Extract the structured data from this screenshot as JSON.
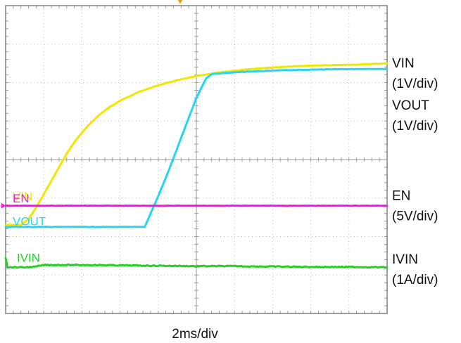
{
  "chart_data": {
    "type": "line",
    "title": "",
    "xlabel": "2ms/div",
    "ylabel": "",
    "grid": true,
    "xlim": [
      0,
      20
    ],
    "ylim": [
      -4,
      4
    ],
    "series": [
      {
        "name": "VIN",
        "color": "#f2e600",
        "x": [
          0,
          0.8,
          1.2,
          1.6,
          2.0,
          2.4,
          2.8,
          3.2,
          3.6,
          4.0,
          4.5,
          5.0,
          5.5,
          6.0,
          7.0,
          8.0,
          9.0,
          10.0,
          11.0,
          12.0,
          13.0,
          14.0,
          15.0,
          16.0,
          17.0,
          18.0,
          19.0,
          20.0
        ],
        "y": [
          -1.7,
          -1.7,
          -1.55,
          -1.25,
          -0.9,
          -0.55,
          -0.2,
          0.15,
          0.45,
          0.7,
          0.97,
          1.2,
          1.38,
          1.53,
          1.76,
          1.93,
          2.06,
          2.17,
          2.25,
          2.31,
          2.36,
          2.39,
          2.42,
          2.44,
          2.45,
          2.46,
          2.48,
          2.5
        ]
      },
      {
        "name": "VOUT",
        "color": "#29d3f5",
        "x": [
          0,
          7.3,
          7.6,
          8.0,
          8.5,
          9.0,
          9.5,
          10.0,
          10.5,
          10.8,
          11.5,
          12.5,
          13.5,
          14.5,
          15.5,
          16.5,
          17.5,
          18.5,
          20.0
        ],
        "y": [
          -1.75,
          -1.75,
          -1.4,
          -0.95,
          -0.35,
          0.3,
          0.95,
          1.6,
          2.1,
          2.22,
          2.25,
          2.28,
          2.3,
          2.32,
          2.33,
          2.34,
          2.35,
          2.35,
          2.35
        ]
      },
      {
        "name": "EN",
        "color": "#f015e8",
        "x": [
          0,
          20
        ],
        "y": [
          -1.2,
          -1.2
        ]
      },
      {
        "name": "IVIN",
        "color": "#25d025",
        "x": [
          0,
          0.1,
          0.6,
          1.0,
          1.5,
          2.0,
          4.0,
          6.0,
          8.0,
          10.0,
          12.0,
          14.0,
          16.0,
          18.0,
          20.0
        ],
        "y": [
          -2.55,
          -2.8,
          -2.8,
          -2.8,
          -2.79,
          -2.74,
          -2.74,
          -2.75,
          -2.76,
          -2.77,
          -2.77,
          -2.78,
          -2.79,
          -2.79,
          -2.8
        ]
      }
    ],
    "trace_labels": [
      {
        "name": "VIN",
        "text": "VIN",
        "y": -0.95,
        "color": "#f2e600"
      },
      {
        "name": "EN",
        "text": "EN",
        "y": -1.0,
        "color": "#f015e8"
      },
      {
        "name": "VOUT",
        "text": "VOUT",
        "y": -1.6,
        "color": "#29d3f5"
      },
      {
        "name": "IVIN",
        "text": "IVIN",
        "y": -2.55,
        "color": "#25d025"
      }
    ],
    "scale_labels": [
      {
        "name": "VIN",
        "lines": [
          "VIN",
          "(1V/div)"
        ],
        "y": 2.25
      },
      {
        "name": "VOUT",
        "lines": [
          "VOUT",
          "(1V/div)"
        ],
        "y": 1.15
      },
      {
        "name": "EN",
        "lines": [
          "EN",
          "(5V/div)"
        ],
        "y": -1.2
      },
      {
        "name": "IVIN",
        "lines": [
          "IVIN",
          "(1A/div)"
        ],
        "y": -2.85
      }
    ]
  },
  "colors": {
    "frame": "#808080",
    "grid": "#9a9a9a",
    "trigger_marker": "#e8a000",
    "ground_marker": "#f015e8"
  }
}
